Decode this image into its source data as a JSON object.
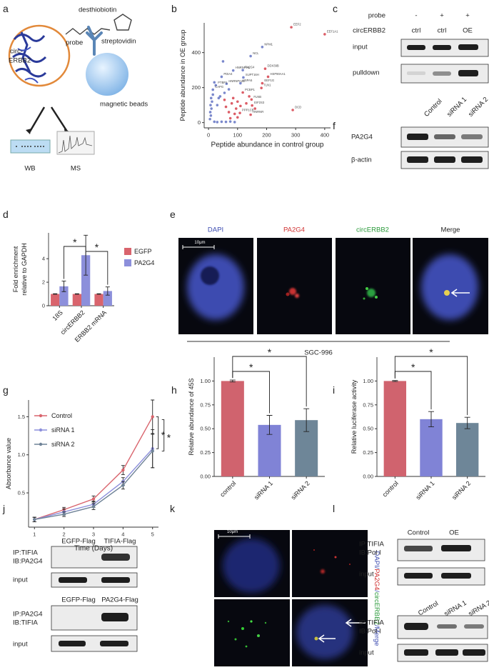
{
  "panel_letters": [
    "a",
    "b",
    "c",
    "d",
    "e",
    "f",
    "g",
    "h",
    "i",
    "j",
    "k",
    "l"
  ],
  "panel_a": {
    "circ_label": [
      "circ-",
      "ERBB2"
    ],
    "desthiobiotin": "desthiobiotin",
    "probe": "probe",
    "streptavidin": "streptovidin",
    "beads": "magnetic beads",
    "wb": "WB",
    "ms": "MS"
  },
  "panel_c": {
    "row_labels": [
      "probe",
      "circERBB2"
    ],
    "probe": [
      "-",
      "+",
      "+"
    ],
    "circERBB2": [
      "ctrl",
      "ctrl",
      "OE"
    ],
    "blots": [
      "input",
      "pulldown"
    ]
  },
  "panel_e": {
    "channels": [
      "DAPI",
      "PA2G4",
      "circERBB2",
      "Merge"
    ],
    "scale": "10μm",
    "cell_line": "SGC-996"
  },
  "panel_f": {
    "lanes": [
      "Control",
      "siRNA 1",
      "siRNA 2"
    ],
    "blots": [
      "PA2G4",
      "β-actin"
    ]
  },
  "panel_j": {
    "top_lanes": [
      "EGFP-Flag",
      "TIFIA-Flag"
    ],
    "top_blots": [
      [
        "IP:TIFIA",
        "IB:PA2G4"
      ],
      [
        "input"
      ]
    ],
    "bottom_lanes": [
      "EGFP-Flag",
      "PA2G4-Flag"
    ],
    "bottom_blots": [
      [
        "IP:PA2G4",
        "IB:TIFIA"
      ],
      [
        "input"
      ]
    ]
  },
  "panel_k": {
    "scale": "10μm",
    "side_label": [
      "DAPI/",
      "PA2G4",
      "/",
      "circERBB2",
      "/Merge"
    ]
  },
  "panel_l": {
    "top_lanes": [
      "Control",
      "OE"
    ],
    "top_blots": [
      [
        "IP:TIFIA",
        "IB:Pol I"
      ],
      [
        "input"
      ]
    ],
    "bottom_lanes": [
      "Control",
      "siRNA 1",
      "siRNA 2"
    ],
    "bottom_blots": [
      [
        "IP:TIFIA",
        "IB:Pol I"
      ],
      [
        "input"
      ]
    ]
  },
  "chart_data": [
    {
      "type": "scatter",
      "xlabel": "Peptide abundance in control group",
      "ylabel": "Peptide abundance in OE group",
      "xlim": [
        -15,
        420
      ],
      "ylim": [
        -30,
        570
      ],
      "xticks": [
        0,
        100,
        200,
        300,
        400
      ],
      "yticks": [
        0,
        200,
        400
      ],
      "series": [
        {
          "color": "#6c7bc6",
          "x": [
            185,
            145,
            85,
            118,
            45,
            120,
            110,
            62,
            25,
            15,
            5,
            8,
            6,
            10,
            7,
            12,
            9,
            15,
            20,
            30,
            45,
            60,
            75,
            90,
            40,
            55,
            30,
            70,
            50,
            20,
            35
          ],
          "values": [
            432,
            380,
            298,
            300,
            262,
            258,
            225,
            222,
            213,
            188,
            20,
            40,
            60,
            80,
            100,
            120,
            140,
            160,
            5,
            3,
            5,
            4,
            6,
            3,
            150,
            170,
            100,
            190,
            350,
            230,
            140
          ],
          "point_labels": [
            "NPM1",
            "NCL",
            "HNRNPH1",
            "PA2G4",
            "PDIA4",
            "SUPT16H",
            "HSPA5",
            "HNRNPA2B",
            "PTBP1",
            "CAPG",
            null,
            null,
            null,
            null,
            null,
            null,
            null,
            null,
            null,
            null,
            null,
            null,
            null,
            null,
            null,
            null,
            null,
            null,
            null,
            null,
            null
          ]
        },
        {
          "color": "#d84b57",
          "x": [
            285,
            400,
            195,
            205,
            185,
            182,
            118,
            148,
            150,
            145,
            108,
            290,
            60,
            80,
            95,
            70,
            100,
            110,
            85,
            130,
            140,
            90,
            55,
            160,
            100,
            75
          ],
          "values": [
            545,
            505,
            308,
            262,
            225,
            198,
            172,
            132,
            98,
            45,
            55,
            72,
            90,
            110,
            80,
            60,
            120,
            95,
            140,
            110,
            150,
            50,
            130,
            80,
            30,
            25
          ],
          "point_labels": [
            "EEF2",
            "EEF1A1",
            "DDX39B",
            "HSP90AA1",
            "EEF1G",
            "TLN1",
            "PCBP1",
            "FLNB",
            "EIF2S3",
            "HNRNR",
            "PPP1CB",
            "DCD",
            null,
            null,
            null,
            null,
            null,
            null,
            null,
            null,
            null,
            null,
            null,
            null,
            null,
            null
          ]
        }
      ]
    },
    {
      "type": "bar",
      "ylabel": [
        "Fold enrichment",
        "relative to GAPDH"
      ],
      "categories": [
        "18S",
        "circERBB2",
        "ERBB2 mRNA"
      ],
      "ylim": [
        0,
        6.2
      ],
      "yticks": [
        0,
        2,
        4
      ],
      "series": [
        {
          "name": "EGFP",
          "color": "#d9646d",
          "values": [
            1,
            1,
            1
          ],
          "errors": [
            0.02,
            0.02,
            0.02
          ]
        },
        {
          "name": "PA2G4",
          "color": "#8c8fdb",
          "values": [
            1.65,
            4.3,
            1.25
          ],
          "errors": [
            0.45,
            1.7,
            0.35
          ]
        }
      ],
      "significance": [
        "*",
        "*"
      ]
    },
    {
      "type": "line",
      "xlabel": "Time (Days)",
      "ylabel": "Absorbance value",
      "x": [
        1,
        2,
        3,
        4,
        5
      ],
      "xlim": [
        0.8,
        5.2
      ],
      "xticks": [
        1,
        2,
        3,
        4,
        5
      ],
      "ylim": [
        0.05,
        1.72
      ],
      "yticks": [
        0.5,
        {
          "value": 1,
          "label": "1.0"
        },
        1.5
      ],
      "series": [
        {
          "name": "Control",
          "color": "#d9646d",
          "values": [
            0.15,
            0.28,
            0.42,
            0.8,
            1.5
          ],
          "errors": [
            0.03,
            0.03,
            0.04,
            0.06,
            0.22
          ]
        },
        {
          "name": "siRNA 1",
          "color": "#8c8fdb",
          "values": [
            0.15,
            0.25,
            0.35,
            0.65,
            1.08
          ],
          "errors": [
            0.03,
            0.04,
            0.04,
            0.05,
            0.25
          ]
        },
        {
          "name": "siRNA 2",
          "color": "#6f8397",
          "values": [
            0.15,
            0.22,
            0.32,
            0.6,
            1.05
          ],
          "errors": [
            0.03,
            0.03,
            0.04,
            0.05,
            0.22
          ]
        }
      ],
      "significance": [
        "*",
        "*"
      ]
    },
    {
      "type": "bar",
      "ylabel": "Relative abundance of 45S",
      "categories": [
        "control",
        "siRNA 1",
        "siRNA 2"
      ],
      "values": [
        1.0,
        0.54,
        0.59
      ],
      "errors": [
        0.01,
        0.1,
        0.12
      ],
      "colors": [
        "#d0636e",
        "#8083d6",
        "#6e8698"
      ],
      "ylim": [
        0,
        1.25
      ],
      "yticks": [
        {
          "value": 0,
          "label": "0.00"
        },
        0.25,
        {
          "value": 0.5,
          "label": "0.50"
        },
        0.75,
        {
          "value": 1,
          "label": "1.00"
        }
      ],
      "significance": [
        "*",
        "*"
      ]
    },
    {
      "type": "bar",
      "ylabel": "Relative luciferase activity",
      "categories": [
        "control",
        "siRNA 1",
        "siRNA 2"
      ],
      "values": [
        1.0,
        0.6,
        0.56
      ],
      "errors": [
        0.005,
        0.08,
        0.06
      ],
      "colors": [
        "#d0636e",
        "#8083d6",
        "#6e8698"
      ],
      "ylim": [
        0,
        1.25
      ],
      "yticks": [
        {
          "value": 0,
          "label": "0.00"
        },
        0.25,
        {
          "value": 0.5,
          "label": "0.50"
        },
        0.75,
        {
          "value": 1,
          "label": "1.00"
        }
      ],
      "significance": [
        "*",
        "*"
      ]
    }
  ]
}
